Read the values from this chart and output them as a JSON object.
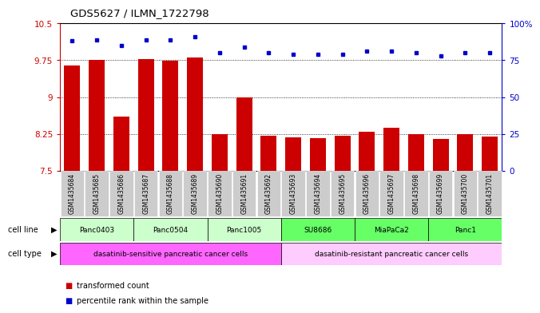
{
  "title": "GDS5627 / ILMN_1722798",
  "samples": [
    "GSM1435684",
    "GSM1435685",
    "GSM1435686",
    "GSM1435687",
    "GSM1435688",
    "GSM1435689",
    "GSM1435690",
    "GSM1435691",
    "GSM1435692",
    "GSM1435693",
    "GSM1435694",
    "GSM1435695",
    "GSM1435696",
    "GSM1435697",
    "GSM1435698",
    "GSM1435699",
    "GSM1435700",
    "GSM1435701"
  ],
  "bar_values": [
    9.65,
    9.75,
    8.6,
    9.78,
    9.74,
    9.8,
    8.25,
    9.0,
    8.22,
    8.18,
    8.17,
    8.22,
    8.29,
    8.37,
    8.25,
    8.15,
    8.24,
    8.2
  ],
  "dot_values": [
    88,
    89,
    85,
    89,
    89,
    91,
    80,
    84,
    80,
    79,
    79,
    79,
    81,
    81,
    80,
    78,
    80,
    80
  ],
  "ylim": [
    7.5,
    10.5
  ],
  "y2lim": [
    0,
    100
  ],
  "yticks": [
    7.5,
    8.25,
    9.0,
    9.75,
    10.5
  ],
  "ytick_labels": [
    "7.5",
    "8.25",
    "9",
    "9.75",
    "10.5"
  ],
  "y2ticks": [
    0,
    25,
    50,
    75,
    100
  ],
  "y2tick_labels": [
    "0",
    "25",
    "50",
    "75",
    "100%"
  ],
  "grid_values": [
    9.75,
    9.0,
    8.25
  ],
  "bar_color": "#cc0000",
  "dot_color": "#0000cc",
  "cell_line_groups": [
    {
      "label": "Panc0403",
      "start": 0,
      "end": 2,
      "color": "#ccffcc"
    },
    {
      "label": "Panc0504",
      "start": 3,
      "end": 5,
      "color": "#ccffcc"
    },
    {
      "label": "Panc1005",
      "start": 6,
      "end": 8,
      "color": "#ccffcc"
    },
    {
      "label": "SU8686",
      "start": 9,
      "end": 11,
      "color": "#66ff66"
    },
    {
      "label": "MiaPaCa2",
      "start": 12,
      "end": 14,
      "color": "#66ff66"
    },
    {
      "label": "Panc1",
      "start": 15,
      "end": 17,
      "color": "#66ff66"
    }
  ],
  "cell_type_groups": [
    {
      "label": "dasatinib-sensitive pancreatic cancer cells",
      "start": 0,
      "end": 8,
      "color": "#ff66ff"
    },
    {
      "label": "dasatinib-resistant pancreatic cancer cells",
      "start": 9,
      "end": 17,
      "color": "#ffccff"
    }
  ],
  "cell_line_label": "cell line",
  "cell_type_label": "cell type",
  "legend_bar_label": "transformed count",
  "legend_dot_label": "percentile rank within the sample",
  "left_axis_color": "#cc0000",
  "right_axis_color": "#0000cc",
  "tick_bg_color": "#cccccc"
}
